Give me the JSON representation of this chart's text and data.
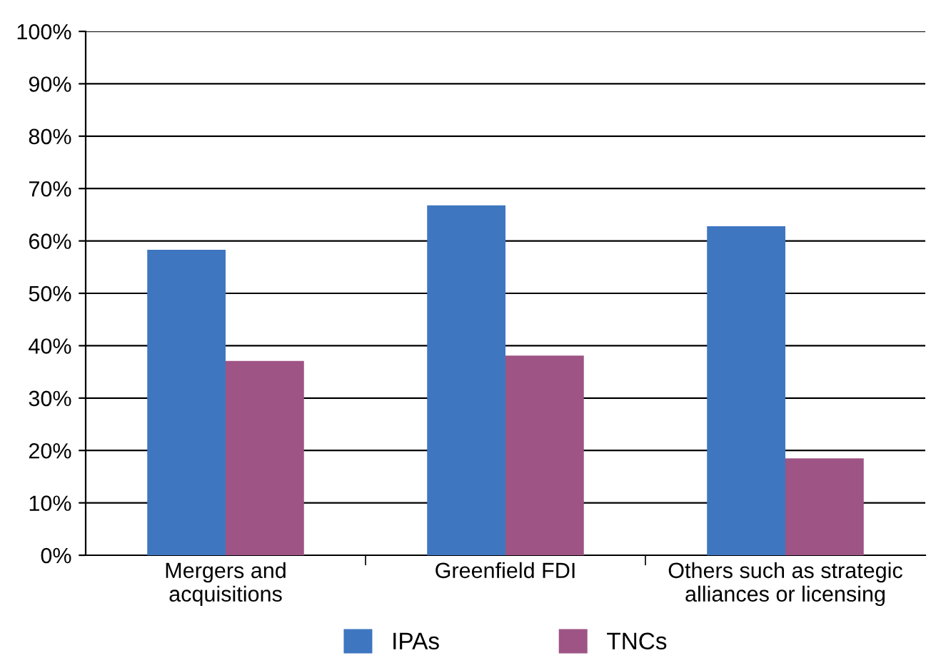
{
  "chart_data": {
    "type": "bar",
    "categories": [
      "Mergers and\nacquisitions",
      "Greenfield FDI",
      "Others such as strategic\nalliances or licensing"
    ],
    "series": [
      {
        "name": "IPAs",
        "color": "#3e76c0",
        "values": [
          58.3,
          66.8,
          62.8
        ]
      },
      {
        "name": "TNCs",
        "color": "#9e5485",
        "values": [
          37.1,
          38.1,
          18.5
        ]
      }
    ],
    "ylim": [
      0,
      100
    ],
    "yticks": [
      {
        "value": 0,
        "label": "0%"
      },
      {
        "value": 10,
        "label": "10%"
      },
      {
        "value": 20,
        "label": "20%"
      },
      {
        "value": 30,
        "label": "30%"
      },
      {
        "value": 40,
        "label": "40%"
      },
      {
        "value": 50,
        "label": "50%"
      },
      {
        "value": 60,
        "label": "60%"
      },
      {
        "value": 70,
        "label": "70%"
      },
      {
        "value": 80,
        "label": "80%"
      },
      {
        "value": 90,
        "label": "90%"
      },
      {
        "value": 100,
        "label": "100%"
      }
    ],
    "grid": "y",
    "legend": "bottom"
  }
}
